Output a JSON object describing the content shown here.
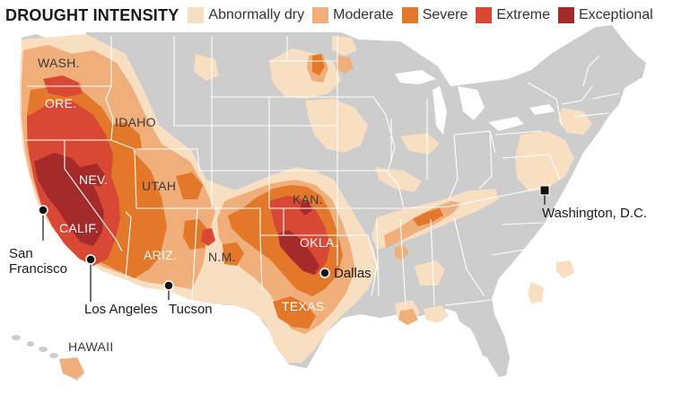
{
  "legend": {
    "title": "DROUGHT INTENSITY",
    "items": [
      {
        "label": "Abnormally dry",
        "color": "#f9dfc1"
      },
      {
        "label": "Moderate",
        "color": "#efae7a"
      },
      {
        "label": "Severe",
        "color": "#e3772a"
      },
      {
        "label": "Extreme",
        "color": "#d84835"
      },
      {
        "label": "Exceptional",
        "color": "#a52a2a"
      }
    ]
  },
  "map": {
    "land_color": "#cdcdcd",
    "border_color": "#ffffff",
    "state_labels": {
      "wash": "WASH.",
      "ore": "ORE.",
      "idaho": "IDAHO",
      "nev": "NEV.",
      "utah": "UTAH",
      "calif": "CALIF.",
      "ariz": "ARIZ.",
      "nm": "N.M.",
      "kan": "KAN.",
      "okla": "OKLA.",
      "texas": "TEXAS",
      "hawaii": "HAWAII"
    },
    "cities": {
      "san_francisco": "San\nFrancisco",
      "los_angeles": "Los Angeles",
      "tucson": "Tucson",
      "dallas": "Dallas",
      "washington_dc": "Washington, D.C."
    }
  }
}
